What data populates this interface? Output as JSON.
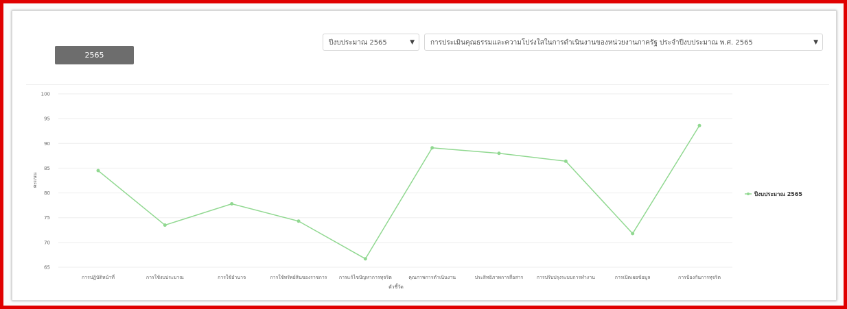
{
  "controls": {
    "year_button_label": "2565",
    "year_select_value": "ปีงบประมาณ 2565",
    "assessment_select_value": "การประเมินคุณธรรมและความโปร่งใสในการดำเนินงานของหน่วยงานภาครัฐ ประจำปีงบประมาณ พ.ศ. 2565"
  },
  "colors": {
    "series": "#90d890",
    "grid": "#eeeeee",
    "frame": "#e00000"
  },
  "chart_data": {
    "type": "line",
    "categories": [
      "การปฏิบัติหน้าที่",
      "การใช้งบประมาณ",
      "การใช้อำนาจ",
      "การใช้ทรัพย์สินของราชการ",
      "การแก้ไขปัญหาการทุจริต",
      "คุณภาพการดำเนินงาน",
      "ประสิทธิภาพการสื่อสาร",
      "การปรับปรุงระบบการทำงาน",
      "การเปิดเผยข้อมูล",
      "การป้องกันการทุจริต"
    ],
    "series": [
      {
        "name": "ปีงบประมาณ 2565",
        "values": [
          84.5,
          73.5,
          77.8,
          74.3,
          66.7,
          89.1,
          88.0,
          86.4,
          71.8,
          93.6
        ]
      }
    ],
    "xlabel": "ตัวชี้วัด",
    "ylabel": "คะแนน",
    "ylim": [
      65,
      100
    ],
    "yticks": [
      65,
      70,
      75,
      80,
      85,
      90,
      95,
      100
    ],
    "grid": true,
    "legend_position": "right"
  }
}
